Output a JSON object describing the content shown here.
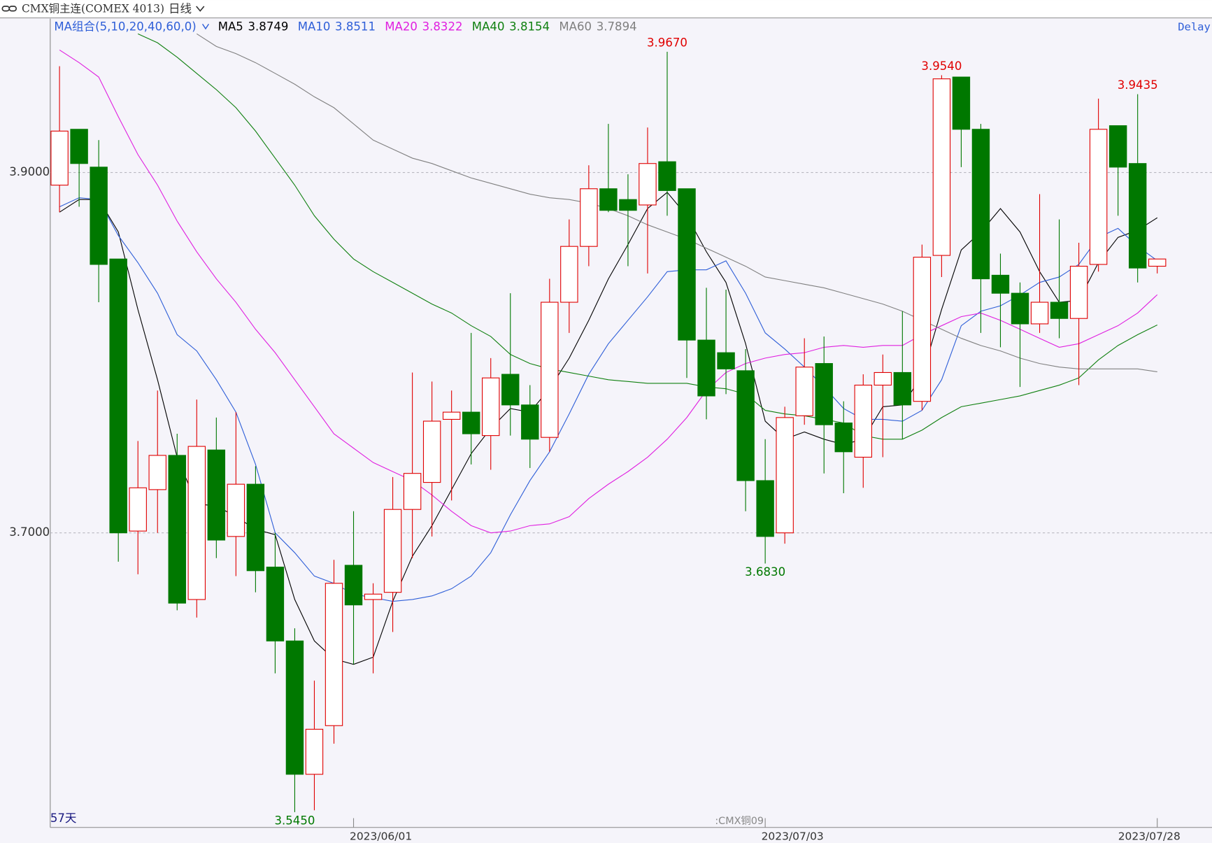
{
  "chart_data": {
    "type": "candlestick",
    "title": "CMX铜主连(COMEX 4013)",
    "period": "日线",
    "ma_group": "MA组合(5,10,20,40,60,0)",
    "delay": "Delay",
    "count_label": "57天",
    "contract_label": ":CMX铜09",
    "up_color": "#e00000",
    "down_color": "#007800",
    "categories": [
      null,
      null,
      null,
      null,
      null,
      null,
      null,
      null,
      null,
      null,
      null,
      null,
      null,
      null,
      null,
      "2023/06/01",
      null,
      null,
      null,
      null,
      null,
      null,
      null,
      null,
      null,
      null,
      null,
      null,
      null,
      null,
      null,
      null,
      null,
      null,
      null,
      null,
      "2023/07/03",
      null,
      null,
      null,
      null,
      null,
      null,
      null,
      null,
      null,
      null,
      null,
      null,
      null,
      null,
      null,
      null,
      null,
      null,
      null,
      "2023/07/28"
    ],
    "open": [
      3.893,
      3.924,
      3.903,
      3.852,
      3.701,
      3.724,
      3.743,
      3.663,
      3.746,
      3.698,
      3.727,
      3.681,
      3.64,
      3.566,
      3.593,
      3.682,
      3.663,
      3.667,
      3.713,
      3.728,
      3.763,
      3.767,
      3.754,
      3.788,
      3.771,
      3.753,
      3.828,
      3.859,
      3.891,
      3.885,
      3.882,
      3.906,
      3.891,
      3.807,
      3.8,
      3.79,
      3.729,
      3.7,
      3.765,
      3.794,
      3.761,
      3.742,
      3.782,
      3.789,
      3.773,
      3.854,
      3.953,
      3.924,
      3.843,
      3.833,
      3.816,
      3.828,
      3.819,
      3.849,
      3.926,
      3.905,
      3.848
    ],
    "high": [
      3.959,
      3.924,
      3.918,
      3.852,
      3.751,
      3.779,
      3.755,
      3.774,
      3.764,
      3.767,
      3.737,
      3.7,
      3.647,
      3.618,
      3.685,
      3.712,
      3.672,
      3.731,
      3.789,
      3.784,
      3.779,
      3.811,
      3.797,
      3.833,
      3.782,
      3.841,
      3.874,
      3.904,
      3.927,
      3.899,
      3.925,
      3.967,
      3.891,
      3.836,
      3.835,
      3.802,
      3.752,
      3.77,
      3.808,
      3.809,
      3.773,
      3.788,
      3.799,
      3.823,
      3.86,
      3.954,
      3.953,
      3.927,
      3.855,
      3.839,
      3.888,
      3.874,
      3.861,
      3.941,
      3.926,
      3.9435,
      3.852
    ],
    "low": [
      3.878,
      3.881,
      3.828,
      3.684,
      3.677,
      3.7,
      3.657,
      3.653,
      3.686,
      3.676,
      3.667,
      3.622,
      3.545,
      3.546,
      3.583,
      3.627,
      3.622,
      3.645,
      3.686,
      3.698,
      3.718,
      3.738,
      3.735,
      3.754,
      3.736,
      3.745,
      3.811,
      3.848,
      3.878,
      3.848,
      3.844,
      3.876,
      3.786,
      3.763,
      3.777,
      3.712,
      3.683,
      3.694,
      3.76,
      3.733,
      3.722,
      3.725,
      3.742,
      3.752,
      3.768,
      3.842,
      3.903,
      3.811,
      3.803,
      3.781,
      3.811,
      3.808,
      3.782,
      3.845,
      3.876,
      3.839,
      3.844
    ],
    "close": [
      3.923,
      3.905,
      3.849,
      3.7,
      3.725,
      3.743,
      3.661,
      3.748,
      3.696,
      3.727,
      3.679,
      3.64,
      3.566,
      3.591,
      3.672,
      3.66,
      3.666,
      3.713,
      3.733,
      3.762,
      3.767,
      3.755,
      3.786,
      3.771,
      3.752,
      3.828,
      3.859,
      3.891,
      3.879,
      3.879,
      3.905,
      3.89,
      3.807,
      3.776,
      3.791,
      3.729,
      3.698,
      3.764,
      3.792,
      3.76,
      3.745,
      3.782,
      3.789,
      3.771,
      3.853,
      3.952,
      3.924,
      3.841,
      3.833,
      3.816,
      3.828,
      3.819,
      3.848,
      3.924,
      3.903,
      3.847,
      3.852
    ],
    "high_labels": [
      null,
      null,
      null,
      null,
      null,
      null,
      null,
      null,
      null,
      null,
      null,
      null,
      null,
      null,
      null,
      null,
      null,
      null,
      null,
      null,
      null,
      null,
      null,
      null,
      null,
      null,
      null,
      null,
      null,
      null,
      null,
      "3.9670",
      null,
      null,
      null,
      null,
      null,
      null,
      null,
      null,
      null,
      null,
      null,
      null,
      null,
      "3.9540",
      null,
      null,
      null,
      null,
      null,
      null,
      null,
      null,
      null,
      "3.9435",
      null
    ],
    "low_labels": [
      null,
      null,
      null,
      null,
      null,
      null,
      null,
      null,
      null,
      null,
      null,
      null,
      "3.5450",
      null,
      null,
      null,
      null,
      null,
      null,
      null,
      null,
      null,
      null,
      null,
      null,
      null,
      null,
      null,
      null,
      null,
      null,
      null,
      null,
      null,
      null,
      null,
      "3.6830",
      null,
      null,
      null,
      null,
      null,
      null,
      null,
      null,
      null,
      null,
      null,
      null,
      null,
      null,
      null,
      null,
      null,
      null,
      null,
      null
    ],
    "series": [
      {
        "name": "MA5",
        "color": "#000000",
        "values": [
          3.878,
          3.885,
          3.885,
          3.867,
          3.824,
          3.785,
          3.742,
          3.716,
          3.715,
          3.709,
          3.702,
          3.699,
          3.663,
          3.64,
          3.63,
          3.627,
          3.631,
          3.662,
          3.687,
          3.704,
          3.724,
          3.744,
          3.758,
          3.769,
          3.767,
          3.78,
          3.797,
          3.818,
          3.841,
          3.86,
          3.88,
          3.889,
          3.876,
          3.856,
          3.839,
          3.805,
          3.762,
          3.752,
          3.756,
          3.752,
          3.749,
          3.752,
          3.77,
          3.771,
          3.787,
          3.824,
          3.857,
          3.867,
          3.88,
          3.867,
          3.845,
          3.828,
          3.829,
          3.85,
          3.864,
          3.868,
          3.8749
        ]
      },
      {
        "name": "MA10",
        "color": "#2f5fd8",
        "values": [
          3.881,
          3.886,
          3.885,
          3.865,
          3.85,
          3.833,
          3.81,
          3.801,
          3.785,
          3.767,
          3.738,
          3.7,
          3.689,
          3.676,
          3.672,
          3.666,
          3.664,
          3.662,
          3.663,
          3.665,
          3.669,
          3.676,
          3.689,
          3.71,
          3.729,
          3.745,
          3.766,
          3.788,
          3.805,
          3.818,
          3.831,
          3.845,
          3.846,
          3.846,
          3.851,
          3.833,
          3.811,
          3.802,
          3.792,
          3.781,
          3.769,
          3.763,
          3.763,
          3.762,
          3.768,
          3.785,
          3.815,
          3.823,
          3.826,
          3.832,
          3.839,
          3.842,
          3.849,
          3.864,
          3.869,
          3.859,
          3.8511
        ]
      },
      {
        "name": "MA20",
        "color": "#e020e0",
        "values": [
          3.968,
          3.961,
          3.953,
          3.931,
          3.91,
          3.893,
          3.873,
          3.856,
          3.841,
          3.828,
          3.813,
          3.8,
          3.785,
          3.77,
          3.755,
          3.747,
          3.739,
          3.734,
          3.729,
          3.721,
          3.712,
          3.704,
          3.7,
          3.701,
          3.704,
          3.705,
          3.709,
          3.719,
          3.727,
          3.734,
          3.742,
          3.752,
          3.764,
          3.779,
          3.789,
          3.794,
          3.797,
          3.799,
          3.8,
          3.803,
          3.804,
          3.803,
          3.804,
          3.804,
          3.81,
          3.815,
          3.82,
          3.822,
          3.818,
          3.813,
          3.808,
          3.803,
          3.805,
          3.81,
          3.815,
          3.822,
          3.8322
        ]
      },
      {
        "name": "MA40",
        "color": "#108010",
        "values": [
          null,
          null,
          null,
          null,
          3.977,
          3.972,
          3.964,
          3.955,
          3.946,
          3.936,
          3.923,
          3.908,
          3.893,
          3.876,
          3.863,
          3.852,
          3.845,
          3.839,
          3.833,
          3.827,
          3.822,
          3.815,
          3.809,
          3.799,
          3.794,
          3.791,
          3.789,
          3.787,
          3.785,
          3.784,
          3.783,
          3.783,
          3.783,
          3.781,
          3.78,
          3.777,
          3.768,
          3.766,
          3.765,
          3.763,
          3.761,
          3.754,
          3.752,
          3.752,
          3.757,
          3.764,
          3.77,
          3.772,
          3.774,
          3.776,
          3.779,
          3.782,
          3.786,
          3.796,
          3.804,
          3.81,
          3.8154
        ]
      },
      {
        "name": "MA60",
        "color": "#808080",
        "values": [
          null,
          null,
          null,
          null,
          null,
          null,
          null,
          3.977,
          3.97,
          3.966,
          3.961,
          3.955,
          3.949,
          3.942,
          3.936,
          3.927,
          3.918,
          3.913,
          3.908,
          3.905,
          3.901,
          3.897,
          3.894,
          3.891,
          3.888,
          3.886,
          3.885,
          3.883,
          3.88,
          3.876,
          3.871,
          3.867,
          3.863,
          3.858,
          3.853,
          3.848,
          3.842,
          3.84,
          3.838,
          3.836,
          3.833,
          3.83,
          3.827,
          3.823,
          3.818,
          3.813,
          3.808,
          3.804,
          3.801,
          3.797,
          3.794,
          3.792,
          3.791,
          3.791,
          3.791,
          3.791,
          3.7894
        ]
      }
    ],
    "ylim": [
      3.5365,
      3.9854
    ],
    "yticks": [
      {
        "value": 3.7,
        "label": "3.7000"
      },
      {
        "value": 3.9,
        "label": "3.9000"
      }
    ],
    "grid": true
  }
}
